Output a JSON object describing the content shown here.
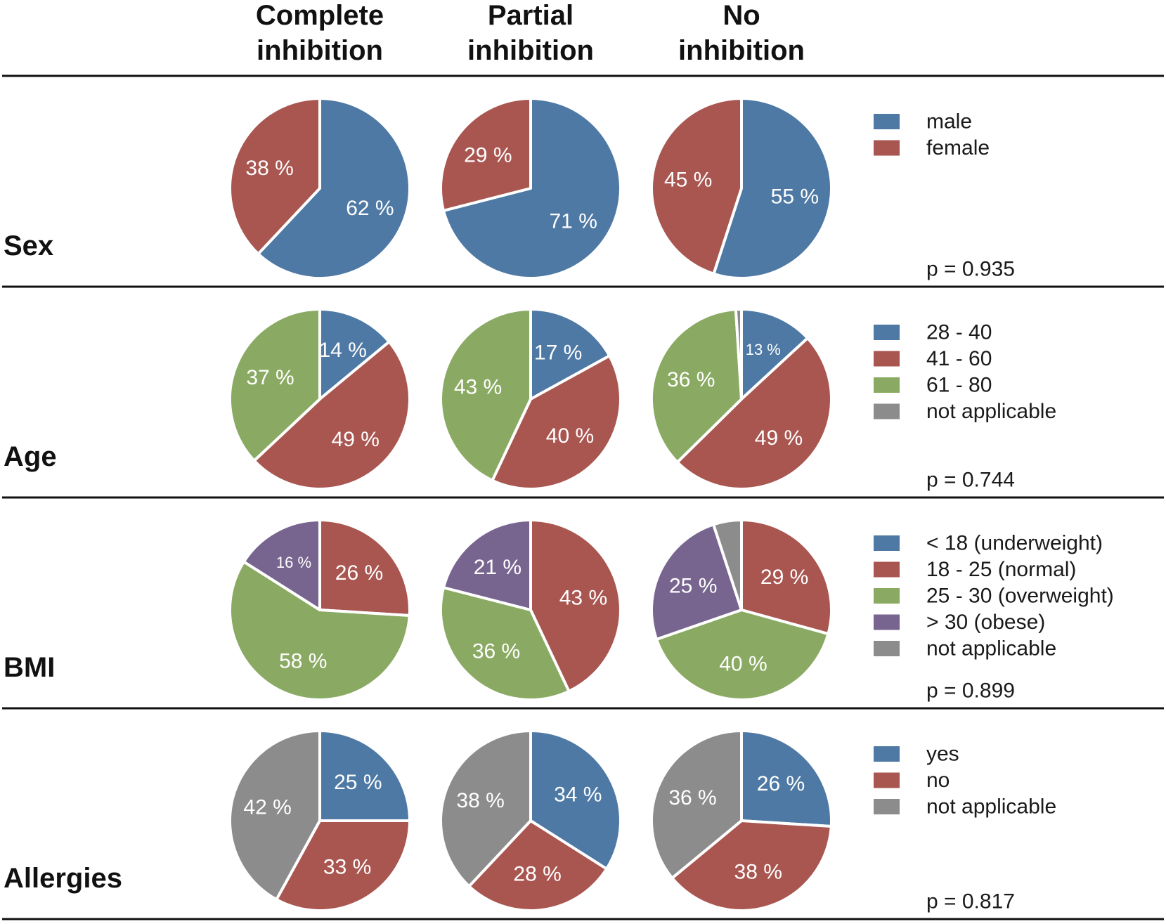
{
  "chart_data": {
    "type": "pie",
    "columns": [
      "Complete\ninhibition",
      "Partial\ninhibition",
      "No\ninhibition"
    ],
    "rows": [
      {
        "label": "Sex",
        "p_value": "p = 0.935",
        "legend": [
          {
            "name": "male",
            "color": "#4e79a4"
          },
          {
            "name": "female",
            "color": "#a95651"
          }
        ],
        "pies": [
          {
            "values": [
              62,
              38
            ],
            "labels": [
              "62 %",
              "38 %"
            ]
          },
          {
            "values": [
              71,
              29
            ],
            "labels": [
              "71 %",
              "29 %"
            ]
          },
          {
            "values": [
              55,
              45
            ],
            "labels": [
              "55 %",
              "45 %"
            ]
          }
        ]
      },
      {
        "label": "Age",
        "p_value": "p = 0.744",
        "legend": [
          {
            "name": "28 - 40",
            "color": "#4e79a4"
          },
          {
            "name": "41 - 60",
            "color": "#a95651"
          },
          {
            "name": "61 - 80",
            "color": "#8aaa63"
          },
          {
            "name": "not applicable",
            "color": "#8c8c8c"
          }
        ],
        "pies": [
          {
            "values": [
              14,
              49,
              37,
              0
            ],
            "labels": [
              "14 %",
              "49 %",
              "37 %",
              ""
            ]
          },
          {
            "values": [
              17,
              40,
              43,
              0
            ],
            "labels": [
              "17 %",
              "40 %",
              "43 %",
              ""
            ]
          },
          {
            "values": [
              13,
              49,
              36,
              1
            ],
            "labels": [
              "13 %",
              "49 %",
              "36 %",
              ""
            ]
          }
        ]
      },
      {
        "label": "BMI",
        "p_value": "p = 0.899",
        "legend": [
          {
            "name": "< 18 (underweight)",
            "color": "#4e79a4"
          },
          {
            "name": "18 - 25 (normal)",
            "color": "#a95651"
          },
          {
            "name": "25 - 30 (overweight)",
            "color": "#8aaa63"
          },
          {
            "name": "> 30 (obese)",
            "color": "#77658f"
          },
          {
            "name": "not applicable",
            "color": "#8c8c8c"
          }
        ],
        "pies": [
          {
            "values": [
              0,
              26,
              58,
              16,
              0
            ],
            "labels": [
              "",
              "26 %",
              "58 %",
              "16 %",
              ""
            ]
          },
          {
            "values": [
              0,
              43,
              36,
              21,
              0
            ],
            "labels": [
              "",
              "43 %",
              "36 %",
              "21 %",
              ""
            ]
          },
          {
            "values": [
              0,
              29,
              40,
              25,
              5
            ],
            "labels": [
              "",
              "29 %",
              "40 %",
              "25 %",
              ""
            ]
          }
        ]
      },
      {
        "label": "Allergies",
        "p_value": "p = 0.817",
        "legend": [
          {
            "name": "yes",
            "color": "#4e79a4"
          },
          {
            "name": "no",
            "color": "#a95651"
          },
          {
            "name": "not applicable",
            "color": "#8c8c8c"
          }
        ],
        "pies": [
          {
            "values": [
              25,
              33,
              42
            ],
            "labels": [
              "25 %",
              "33 %",
              "42 %"
            ]
          },
          {
            "values": [
              34,
              28,
              38
            ],
            "labels": [
              "34 %",
              "28 %",
              "38 %"
            ]
          },
          {
            "values": [
              26,
              38,
              36
            ],
            "labels": [
              "26 %",
              "38 %",
              "36 %"
            ]
          }
        ]
      }
    ]
  }
}
